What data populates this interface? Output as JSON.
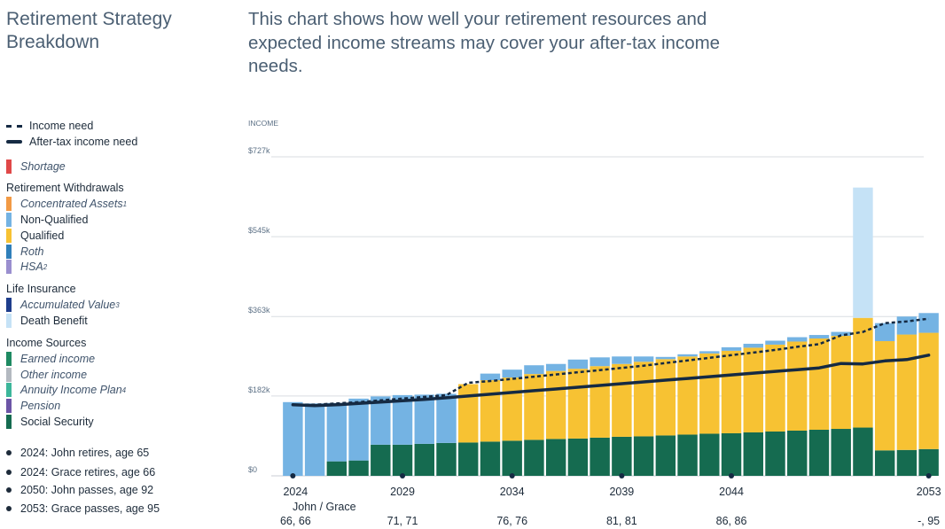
{
  "title": "Retirement Strategy Breakdown",
  "description": "This chart shows how well your retirement resources and expected income streams may cover your after-tax income needs.",
  "legend": {
    "income_need": "Income need",
    "after_tax_need": "After-tax income need",
    "shortage": "Shortage",
    "withdrawals_head": "Retirement Withdrawals",
    "concentrated": "Concentrated Assets",
    "concentrated_sup": "1",
    "nonqualified": "Non-Qualified",
    "qualified": "Qualified",
    "roth": "Roth",
    "hsa": "HSA",
    "hsa_sup": "2",
    "life_head": "Life Insurance",
    "accumulated": "Accumulated Value",
    "accumulated_sup": "3",
    "death": "Death Benefit",
    "income_head": "Income Sources",
    "earned": "Earned income",
    "other": "Other income",
    "annuity": "Annuity Income Plan",
    "annuity_sup": "4",
    "pension": "Pension",
    "social": "Social Security"
  },
  "events": [
    "2024: John retires, age 65",
    "2024: Grace retires, age 66",
    "2050: John passes, age 92",
    "2053: Grace passes, age 95"
  ],
  "colors": {
    "shortage": "#e04848",
    "concentrated": "#f29a45",
    "nonqualified": "#74b3e3",
    "qualified": "#f7c233",
    "roth": "#2f7fba",
    "hsa": "#9a8fcf",
    "accumulated": "#1e3d8c",
    "death": "#c5e2f6",
    "earned": "#1e8a62",
    "other": "#b3b9c0",
    "annuity": "#3cb69a",
    "pension": "#6c55a6",
    "social": "#156b50",
    "line": "#152a43",
    "grid": "#d9dde2",
    "axis_text": "#5d7186"
  },
  "chart_data": {
    "type": "bar",
    "ylabel": "INCOME",
    "ylim": [
      0,
      727
    ],
    "yticks": [
      "$0",
      "$182k",
      "$363k",
      "$545k",
      "$727k"
    ],
    "ytick_values": [
      0,
      182,
      363,
      545,
      727
    ],
    "x": [
      2024,
      2025,
      2026,
      2027,
      2028,
      2029,
      2030,
      2031,
      2032,
      2033,
      2034,
      2035,
      2036,
      2037,
      2038,
      2039,
      2040,
      2041,
      2042,
      2043,
      2044,
      2045,
      2046,
      2047,
      2048,
      2049,
      2050,
      2051,
      2052,
      2053
    ],
    "xtick_labels": [
      "2024",
      "2029",
      "2034",
      "2039",
      "2044",
      "2053"
    ],
    "age_header": "John / Grace",
    "age_labels": [
      "66, 66",
      "71, 71",
      "76, 76",
      "81, 81",
      "86, 86",
      "-, 95"
    ],
    "series": [
      {
        "name": "Social Security",
        "values": [
          0,
          0,
          33,
          35,
          71,
          71,
          73,
          75,
          76,
          78,
          80,
          82,
          84,
          85,
          87,
          89,
          90,
          92,
          94,
          96,
          97,
          99,
          101,
          103,
          105,
          107,
          110,
          58,
          59,
          61
        ]
      },
      {
        "name": "Qualified",
        "values": [
          0,
          0,
          0,
          0,
          0,
          0,
          0,
          0,
          133,
          140,
          144,
          150,
          155,
          159,
          163,
          166,
          170,
          174,
          178,
          183,
          188,
          193,
          198,
          203,
          208,
          212,
          250,
          249,
          263,
          265
        ]
      },
      {
        "name": "Non-Qualified",
        "values": [
          168,
          165,
          133,
          141,
          110,
          113,
          112,
          112,
          0,
          15,
          18,
          20,
          16,
          21,
          20,
          17,
          12,
          5,
          5,
          5,
          8,
          9,
          9,
          10,
          8,
          9,
          0,
          41,
          41,
          45
        ]
      },
      {
        "name": "Death Benefit",
        "values": [
          0,
          0,
          0,
          0,
          0,
          0,
          0,
          0,
          0,
          0,
          0,
          0,
          0,
          0,
          0,
          0,
          0,
          0,
          0,
          0,
          0,
          0,
          0,
          0,
          0,
          0,
          297,
          0,
          0,
          0
        ]
      },
      {
        "name": "Income need",
        "values": [
          162,
          162,
          165,
          168,
          172,
          176,
          180,
          184,
          212,
          216,
          221,
          226,
          231,
          236,
          241,
          246,
          251,
          257,
          263,
          269,
          275,
          281,
          287,
          294,
          300,
          320,
          328,
          348,
          352,
          358
        ]
      },
      {
        "name": "After-tax income need",
        "values": [
          162,
          160,
          162,
          165,
          168,
          171,
          174,
          178,
          182,
          186,
          190,
          194,
          198,
          202,
          206,
          210,
          214,
          218,
          222,
          226,
          230,
          234,
          238,
          242,
          246,
          256,
          255,
          262,
          265,
          275
        ]
      }
    ]
  }
}
